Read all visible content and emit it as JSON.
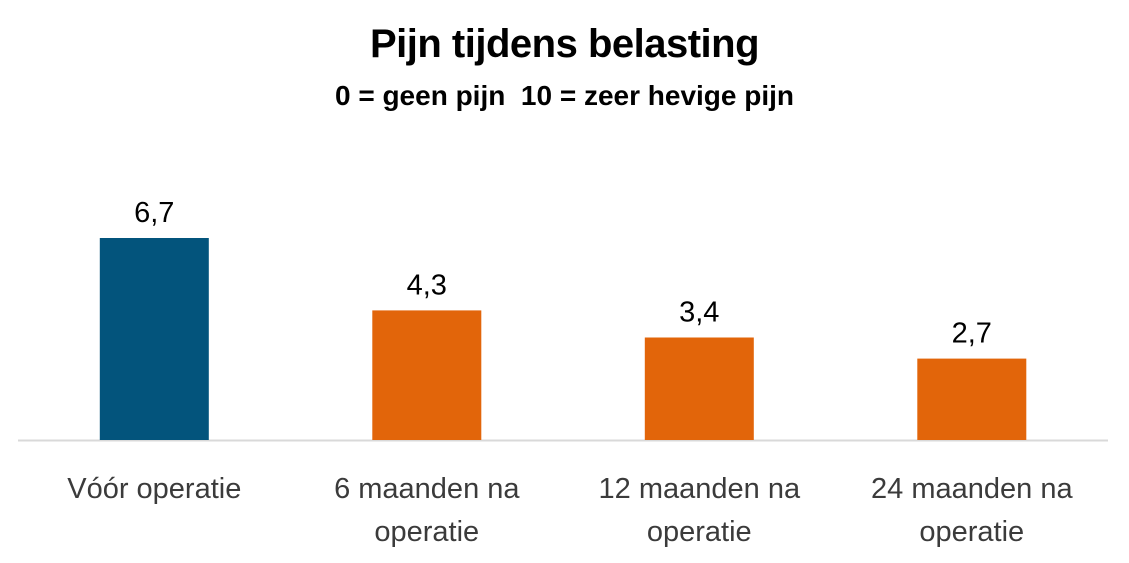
{
  "chart_data": {
    "type": "bar",
    "title": "Pijn tijdens belasting",
    "subtitle": "0 = geen pijn  10 = zeer hevige pijn",
    "categories": [
      [
        "Vóór operatie"
      ],
      [
        "6 maanden na",
        "operatie"
      ],
      [
        "12 maanden na",
        "operatie"
      ],
      [
        "24 maanden na",
        "operatie"
      ]
    ],
    "values": [
      6.7,
      4.3,
      3.4,
      2.7
    ],
    "value_labels": [
      "6,7",
      "4,3",
      "3,4",
      "2,7"
    ],
    "bar_colors": [
      "#03547c",
      "#e2650a",
      "#e2650a",
      "#e2650a"
    ],
    "axis_color": "#d9d9d9",
    "ylim": [
      0,
      8
    ],
    "xlabel": "",
    "ylabel": "",
    "grid": false,
    "legend": "none"
  }
}
